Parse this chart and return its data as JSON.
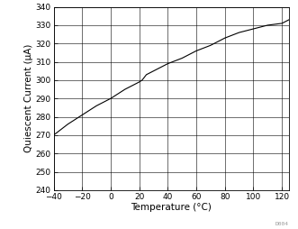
{
  "x": [
    -40,
    -30,
    -20,
    -10,
    0,
    10,
    20,
    22,
    25,
    30,
    40,
    50,
    60,
    70,
    80,
    90,
    100,
    110,
    120,
    125
  ],
  "y": [
    270,
    276,
    281,
    286,
    290,
    295,
    299,
    300,
    303,
    305,
    309,
    312,
    316,
    319,
    323,
    326,
    328,
    330,
    331,
    333
  ],
  "xlabel": "Temperature (°C)",
  "ylabel": "Quiescent Current (μA)",
  "xlim": [
    -40,
    125
  ],
  "ylim": [
    240,
    340
  ],
  "xticks": [
    -40,
    -20,
    0,
    20,
    40,
    60,
    80,
    100,
    120
  ],
  "yticks": [
    240,
    250,
    260,
    270,
    280,
    290,
    300,
    310,
    320,
    330,
    340
  ],
  "line_color": "#000000",
  "grid_color": "#000000",
  "bg_color": "#ffffff",
  "tick_fontsize": 6.5,
  "label_fontsize": 7.5,
  "watermark": "D004",
  "line_width": 0.8
}
